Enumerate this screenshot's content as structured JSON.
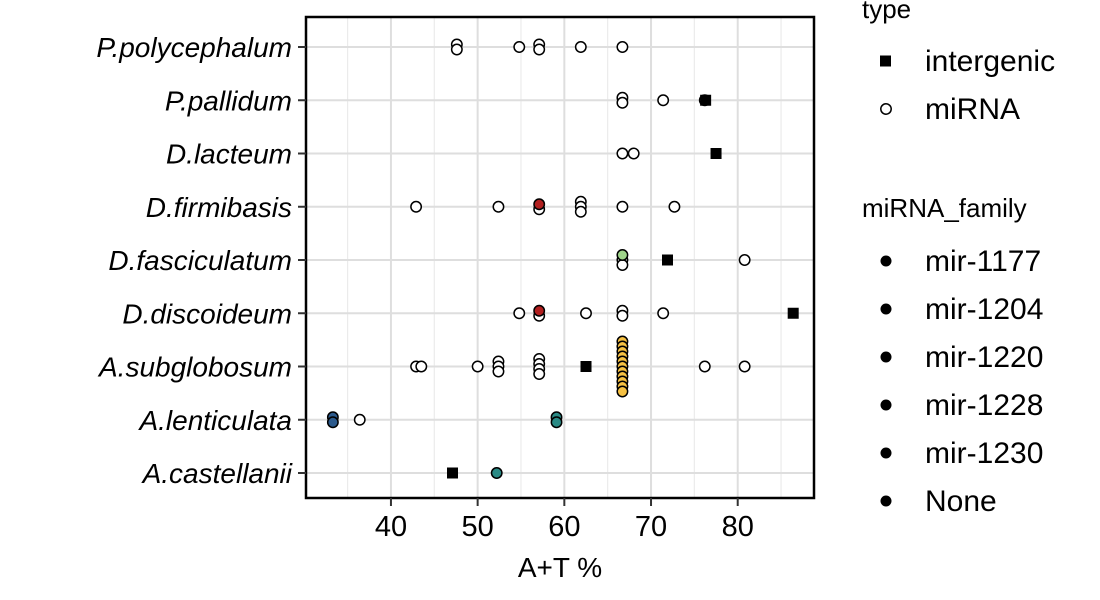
{
  "chart_data": {
    "type": "scatter",
    "xlabel": "A+T %",
    "ylabel": "",
    "xlim": [
      30.2,
      88.8
    ],
    "x_ticks": [
      40,
      50,
      60,
      70,
      80
    ],
    "x_tick_labels": [
      "40",
      "50",
      "60",
      "70",
      "80"
    ],
    "categories": [
      "P.polycephalum",
      "P.pallidum",
      "D.lacteum",
      "D.firmibasis",
      "D.fasciculatum",
      "D.discoideum",
      "A.subglobosum",
      "A.lenticulata",
      "A.castellanii"
    ],
    "grid": true,
    "legend": {
      "position": "right",
      "type_title": "type",
      "type_entries": [
        {
          "label": "intergenic",
          "shape": "square"
        },
        {
          "label": "miRNA",
          "shape": "circle"
        }
      ],
      "family_title": "miRNA_family",
      "family_entries": [
        "mir-1177",
        "mir-1204",
        "mir-1220",
        "mir-1228",
        "mir-1230",
        "None"
      ]
    },
    "family_colors": {
      "mir-1177": "#2c5a8c",
      "mir-1204": "#2a8a85",
      "mir-1220": "#9fd48a",
      "mir-1228": "#b11f1f",
      "mir-1230": "#f6c143",
      "None": "#ffffff"
    },
    "points": [
      {
        "species": "P.polycephalum",
        "x": 47.6,
        "type": "miRNA",
        "family": "None"
      },
      {
        "species": "P.polycephalum",
        "x": 47.6,
        "type": "miRNA",
        "family": "None"
      },
      {
        "species": "P.polycephalum",
        "x": 54.8,
        "type": "miRNA",
        "family": "None"
      },
      {
        "species": "P.polycephalum",
        "x": 57.1,
        "type": "miRNA",
        "family": "None"
      },
      {
        "species": "P.polycephalum",
        "x": 57.1,
        "type": "miRNA",
        "family": "None"
      },
      {
        "species": "P.polycephalum",
        "x": 61.9,
        "type": "miRNA",
        "family": "None"
      },
      {
        "species": "P.polycephalum",
        "x": 66.7,
        "type": "miRNA",
        "family": "None"
      },
      {
        "species": "P.pallidum",
        "x": 66.7,
        "type": "miRNA",
        "family": "None"
      },
      {
        "species": "P.pallidum",
        "x": 66.7,
        "type": "miRNA",
        "family": "None"
      },
      {
        "species": "P.pallidum",
        "x": 71.4,
        "type": "miRNA",
        "family": "None"
      },
      {
        "species": "P.pallidum",
        "x": 76.2,
        "type": "miRNA",
        "family": "None"
      },
      {
        "species": "P.pallidum",
        "x": 76.3,
        "type": "intergenic",
        "family": "None"
      },
      {
        "species": "D.lacteum",
        "x": 66.7,
        "type": "miRNA",
        "family": "None"
      },
      {
        "species": "D.lacteum",
        "x": 68.0,
        "type": "miRNA",
        "family": "None"
      },
      {
        "species": "D.lacteum",
        "x": 77.5,
        "type": "intergenic",
        "family": "None"
      },
      {
        "species": "D.firmibasis",
        "x": 42.9,
        "type": "miRNA",
        "family": "None"
      },
      {
        "species": "D.firmibasis",
        "x": 52.4,
        "type": "miRNA",
        "family": "None"
      },
      {
        "species": "D.firmibasis",
        "x": 57.1,
        "type": "miRNA",
        "family": "mir-1228"
      },
      {
        "species": "D.firmibasis",
        "x": 57.1,
        "type": "miRNA",
        "family": "None"
      },
      {
        "species": "D.firmibasis",
        "x": 61.9,
        "type": "miRNA",
        "family": "None"
      },
      {
        "species": "D.firmibasis",
        "x": 61.9,
        "type": "miRNA",
        "family": "None"
      },
      {
        "species": "D.firmibasis",
        "x": 61.9,
        "type": "miRNA",
        "family": "None"
      },
      {
        "species": "D.firmibasis",
        "x": 66.7,
        "type": "miRNA",
        "family": "None"
      },
      {
        "species": "D.firmibasis",
        "x": 72.7,
        "type": "miRNA",
        "family": "None"
      },
      {
        "species": "D.fasciculatum",
        "x": 66.7,
        "type": "miRNA",
        "family": "mir-1220"
      },
      {
        "species": "D.fasciculatum",
        "x": 66.7,
        "type": "miRNA",
        "family": "None"
      },
      {
        "species": "D.fasciculatum",
        "x": 66.7,
        "type": "miRNA",
        "family": "None"
      },
      {
        "species": "D.fasciculatum",
        "x": 71.9,
        "type": "intergenic",
        "family": "None"
      },
      {
        "species": "D.fasciculatum",
        "x": 80.8,
        "type": "miRNA",
        "family": "None"
      },
      {
        "species": "D.discoideum",
        "x": 54.8,
        "type": "miRNA",
        "family": "None"
      },
      {
        "species": "D.discoideum",
        "x": 57.1,
        "type": "miRNA",
        "family": "mir-1228"
      },
      {
        "species": "D.discoideum",
        "x": 57.1,
        "type": "miRNA",
        "family": "None"
      },
      {
        "species": "D.discoideum",
        "x": 62.5,
        "type": "miRNA",
        "family": "None"
      },
      {
        "species": "D.discoideum",
        "x": 66.7,
        "type": "miRNA",
        "family": "None"
      },
      {
        "species": "D.discoideum",
        "x": 66.7,
        "type": "miRNA",
        "family": "None"
      },
      {
        "species": "D.discoideum",
        "x": 71.4,
        "type": "miRNA",
        "family": "None"
      },
      {
        "species": "D.discoideum",
        "x": 86.4,
        "type": "intergenic",
        "family": "None"
      },
      {
        "species": "A.subglobosum",
        "x": 42.9,
        "type": "miRNA",
        "family": "None"
      },
      {
        "species": "A.subglobosum",
        "x": 43.5,
        "type": "miRNA",
        "family": "None"
      },
      {
        "species": "A.subglobosum",
        "x": 50.0,
        "type": "miRNA",
        "family": "None"
      },
      {
        "species": "A.subglobosum",
        "x": 52.4,
        "type": "miRNA",
        "family": "None"
      },
      {
        "species": "A.subglobosum",
        "x": 52.4,
        "type": "miRNA",
        "family": "None"
      },
      {
        "species": "A.subglobosum",
        "x": 52.4,
        "type": "miRNA",
        "family": "None"
      },
      {
        "species": "A.subglobosum",
        "x": 57.1,
        "type": "miRNA",
        "family": "None"
      },
      {
        "species": "A.subglobosum",
        "x": 57.1,
        "type": "miRNA",
        "family": "None"
      },
      {
        "species": "A.subglobosum",
        "x": 57.1,
        "type": "miRNA",
        "family": "None"
      },
      {
        "species": "A.subglobosum",
        "x": 57.1,
        "type": "miRNA",
        "family": "None"
      },
      {
        "species": "A.subglobosum",
        "x": 62.5,
        "type": "intergenic",
        "family": "None"
      },
      {
        "species": "A.subglobosum",
        "x": 66.7,
        "type": "miRNA",
        "family": "mir-1230"
      },
      {
        "species": "A.subglobosum",
        "x": 66.7,
        "type": "miRNA",
        "family": "mir-1230"
      },
      {
        "species": "A.subglobosum",
        "x": 66.7,
        "type": "miRNA",
        "family": "mir-1230"
      },
      {
        "species": "A.subglobosum",
        "x": 66.7,
        "type": "miRNA",
        "family": "mir-1230"
      },
      {
        "species": "A.subglobosum",
        "x": 66.7,
        "type": "miRNA",
        "family": "mir-1230"
      },
      {
        "species": "A.subglobosum",
        "x": 66.7,
        "type": "miRNA",
        "family": "mir-1230"
      },
      {
        "species": "A.subglobosum",
        "x": 66.7,
        "type": "miRNA",
        "family": "mir-1230"
      },
      {
        "species": "A.subglobosum",
        "x": 66.7,
        "type": "miRNA",
        "family": "mir-1230"
      },
      {
        "species": "A.subglobosum",
        "x": 66.7,
        "type": "miRNA",
        "family": "mir-1230"
      },
      {
        "species": "A.subglobosum",
        "x": 66.7,
        "type": "miRNA",
        "family": "mir-1230"
      },
      {
        "species": "A.subglobosum",
        "x": 66.7,
        "type": "miRNA",
        "family": "mir-1230"
      },
      {
        "species": "A.subglobosum",
        "x": 76.2,
        "type": "miRNA",
        "family": "None"
      },
      {
        "species": "A.subglobosum",
        "x": 80.8,
        "type": "miRNA",
        "family": "None"
      },
      {
        "species": "A.lenticulata",
        "x": 33.3,
        "type": "miRNA",
        "family": "mir-1177"
      },
      {
        "species": "A.lenticulata",
        "x": 33.3,
        "type": "miRNA",
        "family": "mir-1177"
      },
      {
        "species": "A.lenticulata",
        "x": 36.4,
        "type": "miRNA",
        "family": "None"
      },
      {
        "species": "A.lenticulata",
        "x": 59.1,
        "type": "miRNA",
        "family": "mir-1204"
      },
      {
        "species": "A.lenticulata",
        "x": 59.1,
        "type": "miRNA",
        "family": "mir-1204"
      },
      {
        "species": "A.castellanii",
        "x": 47.1,
        "type": "intergenic",
        "family": "None"
      },
      {
        "species": "A.castellanii",
        "x": 52.2,
        "type": "miRNA",
        "family": "mir-1204"
      }
    ]
  }
}
